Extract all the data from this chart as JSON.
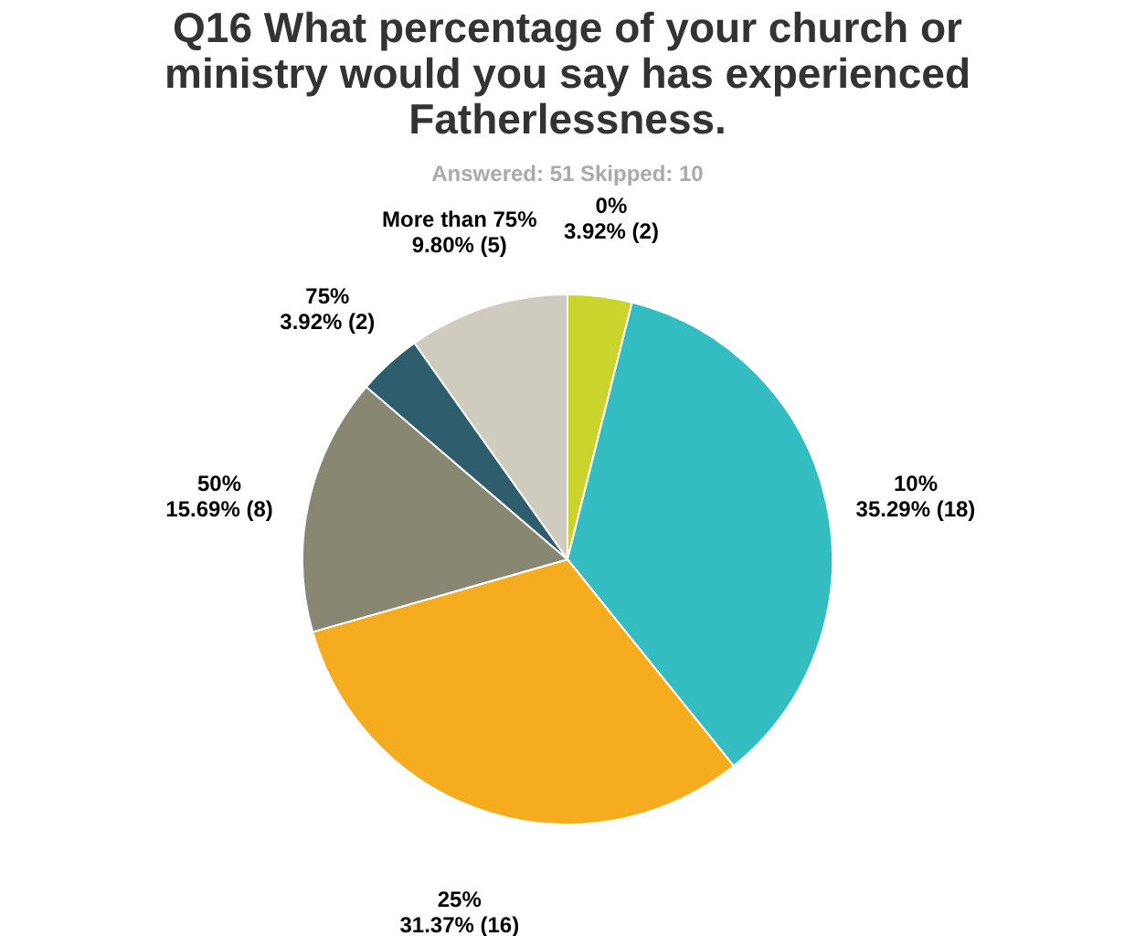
{
  "chart_data": {
    "type": "pie",
    "title": "Q16 What percentage of your church or ministry would you say has experienced Fatherlessness.",
    "subtitle": "Answered: 51    Skipped: 10",
    "categories": [
      "0%",
      "10%",
      "25%",
      "50%",
      "75%",
      "More than 75%"
    ],
    "values": [
      3.92,
      35.29,
      31.37,
      15.69,
      3.92,
      9.8
    ],
    "value_labels": [
      "3.92% (2)",
      "35.29% (18)",
      "31.37% (16)",
      "15.69% (8)",
      "3.92% (2)",
      "9.80% (5)"
    ],
    "colors": [
      "#c9d52d",
      "#33bdc0",
      "#f5ad1f",
      "#878772",
      "#2e5e6e",
      "#cfcbbf"
    ],
    "legend": false
  }
}
